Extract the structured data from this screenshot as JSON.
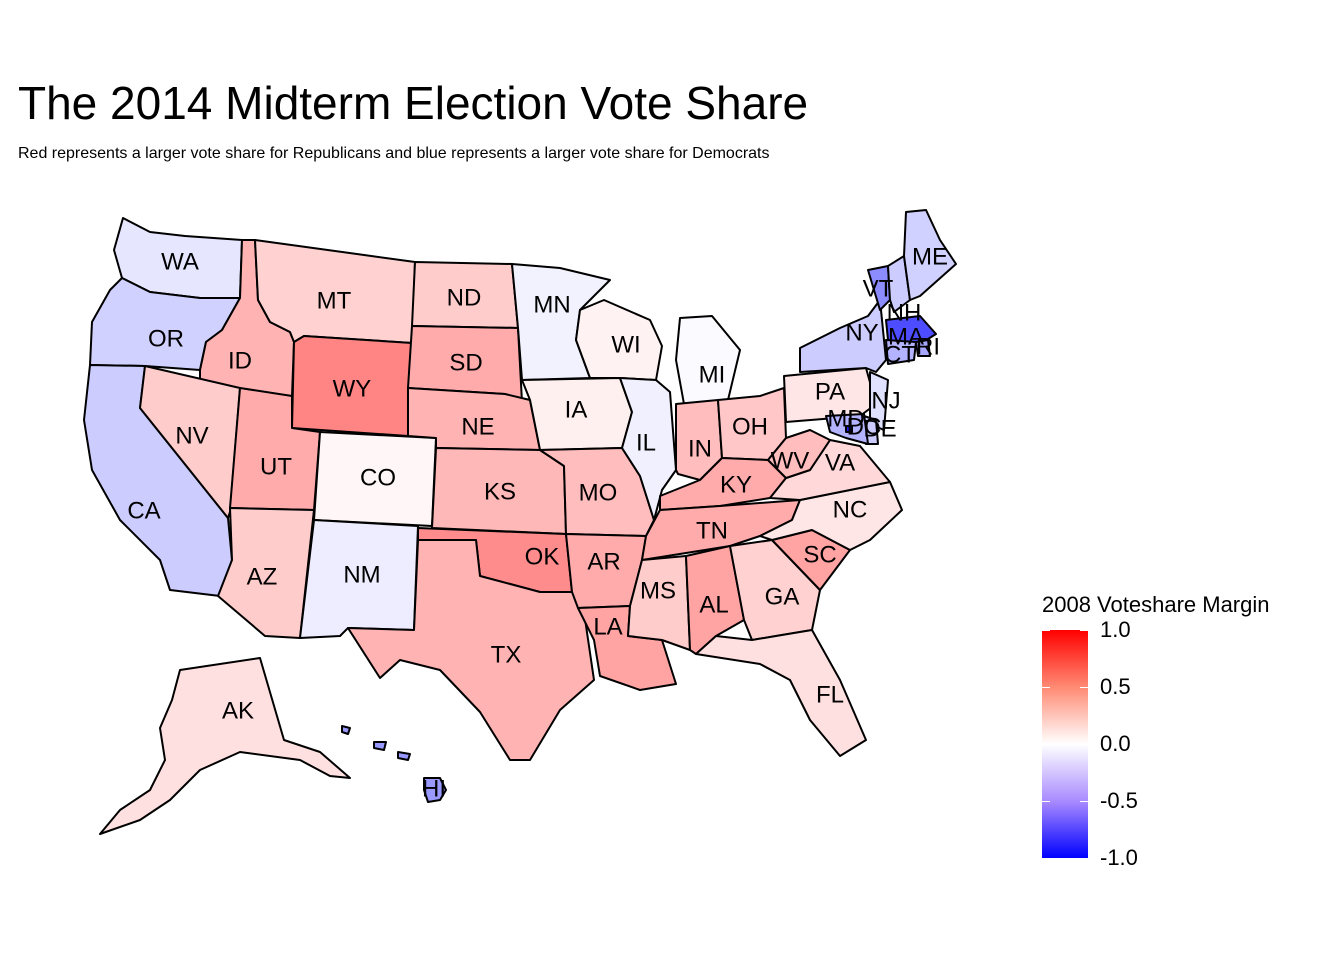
{
  "title": "The 2014 Midterm Election Vote Share",
  "subtitle": "Red represents a larger vote share for Republicans and blue represents a larger vote share for Democrats",
  "legend": {
    "title": "2008 Voteshare Margin",
    "ticks": [
      "1.0",
      "0.5",
      "0.0",
      "-0.5",
      "-1.0"
    ],
    "range": [
      -1.0,
      1.0
    ],
    "colors": {
      "high": "#ff0000",
      "mid": "#ffffff",
      "low": "#0000ff"
    }
  },
  "states": [
    {
      "abbr": "WA",
      "margin": -0.1
    },
    {
      "abbr": "OR",
      "margin": -0.18
    },
    {
      "abbr": "CA",
      "margin": -0.2
    },
    {
      "abbr": "ID",
      "margin": 0.3
    },
    {
      "abbr": "NV",
      "margin": 0.2
    },
    {
      "abbr": "MT",
      "margin": 0.18
    },
    {
      "abbr": "WY",
      "margin": 0.48
    },
    {
      "abbr": "UT",
      "margin": 0.33
    },
    {
      "abbr": "AZ",
      "margin": 0.2
    },
    {
      "abbr": "CO",
      "margin": 0.03
    },
    {
      "abbr": "NM",
      "margin": -0.07
    },
    {
      "abbr": "ND",
      "margin": 0.2
    },
    {
      "abbr": "SD",
      "margin": 0.33
    },
    {
      "abbr": "NE",
      "margin": 0.3
    },
    {
      "abbr": "KS",
      "margin": 0.28
    },
    {
      "abbr": "OK",
      "margin": 0.45
    },
    {
      "abbr": "TX",
      "margin": 0.3
    },
    {
      "abbr": "MN",
      "margin": -0.05
    },
    {
      "abbr": "IA",
      "margin": 0.06
    },
    {
      "abbr": "MO",
      "margin": 0.26
    },
    {
      "abbr": "AR",
      "margin": 0.33
    },
    {
      "abbr": "LA",
      "margin": 0.36
    },
    {
      "abbr": "WI",
      "margin": 0.05
    },
    {
      "abbr": "IL",
      "margin": -0.06
    },
    {
      "abbr": "MI",
      "margin": -0.02
    },
    {
      "abbr": "IN",
      "margin": 0.26
    },
    {
      "abbr": "OH",
      "margin": 0.22
    },
    {
      "abbr": "KY",
      "margin": 0.33
    },
    {
      "abbr": "TN",
      "margin": 0.33
    },
    {
      "abbr": "MS",
      "margin": 0.2
    },
    {
      "abbr": "AL",
      "margin": 0.36
    },
    {
      "abbr": "GA",
      "margin": 0.18
    },
    {
      "abbr": "FL",
      "margin": 0.12
    },
    {
      "abbr": "SC",
      "margin": 0.36
    },
    {
      "abbr": "NC",
      "margin": 0.1
    },
    {
      "abbr": "VA",
      "margin": 0.15
    },
    {
      "abbr": "WV",
      "margin": 0.26
    },
    {
      "abbr": "PA",
      "margin": 0.1
    },
    {
      "abbr": "NY",
      "margin": -0.2
    },
    {
      "abbr": "VT",
      "margin": -0.45
    },
    {
      "abbr": "NH",
      "margin": -0.2
    },
    {
      "abbr": "ME",
      "margin": -0.18
    },
    {
      "abbr": "MA",
      "margin": -0.7
    },
    {
      "abbr": "RI",
      "margin": -0.35
    },
    {
      "abbr": "CT",
      "margin": -0.3
    },
    {
      "abbr": "NJ",
      "margin": -0.12
    },
    {
      "abbr": "DE",
      "margin": -0.2
    },
    {
      "abbr": "MD",
      "margin": -0.3
    },
    {
      "abbr": "DC",
      "margin": -0.9
    },
    {
      "abbr": "AK",
      "margin": 0.12
    },
    {
      "abbr": "HI",
      "margin": -0.4
    }
  ]
}
